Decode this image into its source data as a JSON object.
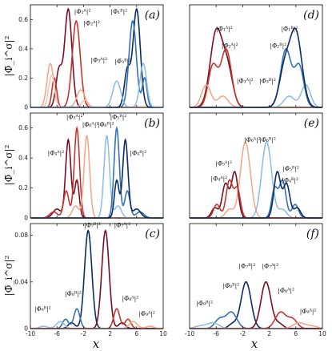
{
  "chart_data": {
    "type": "line",
    "xlabel": "x",
    "ylabel": "|Φ̄_i^σ|²",
    "xlim": [
      -10,
      10
    ],
    "xticks": [
      -10,
      -6,
      -2,
      2,
      6,
      10
    ],
    "xtick_labels": [
      "-10",
      "-6",
      "-2",
      "2",
      "6",
      "10"
    ],
    "panels": [
      {
        "id": "a",
        "label": "(a)",
        "ylim": [
          0,
          0.7
        ],
        "yticks": [
          0,
          0.2,
          0.4,
          0.6
        ],
        "ytick_labels": [
          "0",
          "0.2",
          "0.4",
          "0.6"
        ],
        "annotations": [
          {
            "text": "|Φ̄₁ᴬ|²",
            "x": -3.4,
            "y": 0.64
          },
          {
            "text": "|Φ̄₂ᴬ|²",
            "x": -2.0,
            "y": 0.56
          },
          {
            "text": "|Φ̄₃ᴬ|²",
            "x": -0.9,
            "y": 0.31
          },
          {
            "text": "|Φ̄₁ᴮ|²",
            "x": 2.1,
            "y": 0.64
          },
          {
            "text": "|Φ̄₃ᴮ|²",
            "x": 2.7,
            "y": 0.3
          }
        ],
        "series": [
          {
            "color": "#7a0f22",
            "peaks": [
              [
                -4.3,
                0.67,
                0.55
              ],
              [
                -5.7,
                0.25,
                0.45
              ]
            ]
          },
          {
            "color": "#c4362f",
            "peaks": [
              [
                -3.1,
                0.59,
                0.6
              ],
              [
                -6.4,
                0.2,
                0.35
              ]
            ]
          },
          {
            "color": "#f2a98c",
            "peaks": [
              [
                -7.0,
                0.3,
                0.5
              ],
              [
                -2.4,
                0.12,
                0.6
              ]
            ]
          },
          {
            "color": "#f6c4b2",
            "peaks": [
              [
                -6.8,
                0.22,
                0.45
              ],
              [
                -1.8,
                0.05,
                0.5
              ]
            ]
          },
          {
            "color": "#0d2c63",
            "peaks": [
              [
                6.0,
                0.67,
                0.55
              ],
              [
                4.6,
                0.25,
                0.45
              ]
            ]
          },
          {
            "color": "#3472b6",
            "peaks": [
              [
                5.4,
                0.59,
                0.55
              ],
              [
                7.2,
                0.2,
                0.35
              ]
            ]
          },
          {
            "color": "#8fc0e4",
            "peaks": [
              [
                7.0,
                0.3,
                0.5
              ],
              [
                3.0,
                0.18,
                0.6
              ]
            ]
          }
        ]
      },
      {
        "id": "b",
        "label": "(b)",
        "ylim": [
          0,
          0.7
        ],
        "yticks": [
          0,
          0.2,
          0.4,
          0.6
        ],
        "ytick_labels": [
          "0",
          "0.2",
          "0.4",
          "0.6"
        ],
        "annotations": [
          {
            "text": "|Φ̄₅ᴬ|²",
            "x": -4.6,
            "y": 0.66
          },
          {
            "text": "|Φ̄₆ᴬ|²",
            "x": -2.2,
            "y": 0.61
          },
          {
            "text": "|Φ̄₆ᴮ|²",
            "x": 0.1,
            "y": 0.61
          },
          {
            "text": "|Φ̄₅ᴮ|²",
            "x": 2.0,
            "y": 0.66
          },
          {
            "text": "|Φ̄₄ᴬ|²",
            "x": -7.4,
            "y": 0.42
          },
          {
            "text": "|Φ̄₄ᴮ|²",
            "x": 5.0,
            "y": 0.42
          }
        ],
        "series": [
          {
            "color": "#7a0f22",
            "peaks": [
              [
                -4.3,
                0.52,
                0.4
              ],
              [
                -3.0,
                0.25,
                0.35
              ],
              [
                -6.0,
                0.06,
                0.6
              ]
            ]
          },
          {
            "color": "#c4362f",
            "peaks": [
              [
                -3.0,
                0.6,
                0.4
              ],
              [
                -4.6,
                0.18,
                0.4
              ],
              [
                -6.5,
                0.04,
                0.6
              ]
            ]
          },
          {
            "color": "#f2a98c",
            "peaks": [
              [
                -1.5,
                0.55,
                0.42
              ],
              [
                -3.2,
                0.08,
                0.5
              ]
            ]
          },
          {
            "color": "#8fc0e4",
            "peaks": [
              [
                1.5,
                0.55,
                0.42
              ],
              [
                3.2,
                0.08,
                0.5
              ]
            ]
          },
          {
            "color": "#3472b6",
            "peaks": [
              [
                3.0,
                0.6,
                0.4
              ],
              [
                4.6,
                0.18,
                0.4
              ],
              [
                6.5,
                0.04,
                0.6
              ]
            ]
          },
          {
            "color": "#0d2c63",
            "peaks": [
              [
                4.3,
                0.52,
                0.4
              ],
              [
                3.0,
                0.25,
                0.35
              ],
              [
                6.0,
                0.06,
                0.6
              ]
            ]
          }
        ]
      },
      {
        "id": "c",
        "label": "(c)",
        "ylim": [
          0,
          0.09
        ],
        "yticks": [
          0,
          0.04,
          0.08
        ],
        "ytick_labels": [
          "0",
          "0.04",
          "0.08"
        ],
        "annotations": [
          {
            "text": "|Φ̄₇ᴮ|²",
            "x": -1.9,
            "y": 0.087
          },
          {
            "text": "|Φ̄₇ᴬ|²",
            "x": 2.6,
            "y": 0.087
          },
          {
            "text": "|Φ̄₈ᴮ|²",
            "x": -4.8,
            "y": 0.028
          },
          {
            "text": "|Φ̄₈ᴬ|²",
            "x": 3.8,
            "y": 0.024
          },
          {
            "text": "|Φ̄₉ᴮ|²",
            "x": -9.4,
            "y": 0.015
          },
          {
            "text": "|Φ̄₉ᴬ|²",
            "x": 6.3,
            "y": 0.011
          }
        ],
        "series": [
          {
            "color": "#0d2c63",
            "peaks": [
              [
                -1.3,
                0.084,
                0.55
              ],
              [
                -3.8,
                0.005,
                0.5
              ]
            ]
          },
          {
            "color": "#3472b6",
            "peaks": [
              [
                -3.0,
                0.017,
                0.45
              ],
              [
                -4.7,
                0.008,
                0.45
              ]
            ]
          },
          {
            "color": "#8fc0e4",
            "peaks": [
              [
                -5.5,
                0.006,
                0.6
              ],
              [
                -8.0,
                0.002,
                0.6
              ]
            ]
          },
          {
            "color": "#7a0f22",
            "peaks": [
              [
                1.3,
                0.084,
                0.55
              ],
              [
                3.8,
                0.005,
                0.5
              ]
            ]
          },
          {
            "color": "#c4362f",
            "peaks": [
              [
                3.0,
                0.017,
                0.45
              ],
              [
                4.7,
                0.008,
                0.45
              ]
            ]
          },
          {
            "color": "#f2a98c",
            "peaks": [
              [
                5.5,
                0.006,
                0.6
              ],
              [
                8.0,
                0.002,
                0.6
              ]
            ]
          }
        ]
      },
      {
        "id": "d",
        "label": "(d)",
        "ylim": [
          0,
          0.55
        ],
        "yticks": [],
        "ytick_labels": [],
        "annotations": [
          {
            "text": "|Φ̄₁ᴬ|²",
            "x": -6.0,
            "y": 0.41
          },
          {
            "text": "|Φ̄₂ᴬ|²",
            "x": -5.2,
            "y": 0.32
          },
          {
            "text": "|Φ̄₃ᴬ|²",
            "x": -2.9,
            "y": 0.13
          },
          {
            "text": "|Φ̄₃ᴮ|²",
            "x": 0.5,
            "y": 0.13
          },
          {
            "text": "|Φ̄₂ᴮ|²",
            "x": 2.1,
            "y": 0.32
          },
          {
            "text": "|Φ̄₁ᴮ|²",
            "x": 3.8,
            "y": 0.41
          }
        ],
        "series": [
          {
            "color": "#7a0f22",
            "peaks": [
              [
                -6.0,
                0.4,
                0.9
              ],
              [
                -4.3,
                0.2,
                0.8
              ]
            ]
          },
          {
            "color": "#c4362f",
            "peaks": [
              [
                -4.5,
                0.31,
                0.8
              ],
              [
                -6.5,
                0.22,
                0.7
              ]
            ]
          },
          {
            "color": "#f2a98c",
            "peaks": [
              [
                -7.5,
                0.12,
                0.7
              ],
              [
                -5.0,
                0.06,
                0.8
              ]
            ]
          },
          {
            "color": "#8fc0e4",
            "peaks": [
              [
                7.5,
                0.12,
                0.7
              ],
              [
                5.0,
                0.06,
                0.8
              ]
            ]
          },
          {
            "color": "#3472b6",
            "peaks": [
              [
                4.5,
                0.31,
                0.8
              ],
              [
                6.5,
                0.22,
                0.7
              ]
            ]
          },
          {
            "color": "#0d2c63",
            "peaks": [
              [
                6.0,
                0.4,
                0.9
              ],
              [
                4.3,
                0.2,
                0.8
              ]
            ]
          }
        ]
      },
      {
        "id": "e",
        "label": "(e)",
        "ylim": [
          0,
          0.62
        ],
        "yticks": [],
        "ytick_labels": [],
        "annotations": [
          {
            "text": "|Φ̄₆ᴬ|²",
            "x": -1.8,
            "y": 0.45
          },
          {
            "text": "|Φ̄₆ᴮ|²",
            "x": 0.5,
            "y": 0.45
          },
          {
            "text": "|Φ̄₅ᴬ|²",
            "x": -6.1,
            "y": 0.31
          },
          {
            "text": "|Φ̄₄ᴬ|²",
            "x": -6.8,
            "y": 0.22
          },
          {
            "text": "|Φ̄₅ᴮ|²",
            "x": 4.0,
            "y": 0.28
          },
          {
            "text": "|Φ̄₄ᴮ|²",
            "x": 3.9,
            "y": 0.21
          }
        ],
        "series": [
          {
            "color": "#f2a98c",
            "peaks": [
              [
                -1.6,
                0.45,
                0.75
              ],
              [
                -4.0,
                0.05,
                0.6
              ]
            ]
          },
          {
            "color": "#8fc0e4",
            "peaks": [
              [
                1.6,
                0.45,
                0.75
              ],
              [
                4.0,
                0.05,
                0.6
              ]
            ]
          },
          {
            "color": "#7a0f22",
            "peaks": [
              [
                -3.2,
                0.27,
                0.5
              ],
              [
                -4.6,
                0.2,
                0.5
              ],
              [
                -6.2,
                0.06,
                0.5
              ]
            ]
          },
          {
            "color": "#c4362f",
            "peaks": [
              [
                -4.0,
                0.22,
                0.5
              ],
              [
                -2.8,
                0.17,
                0.45
              ],
              [
                -5.9,
                0.08,
                0.5
              ]
            ]
          },
          {
            "color": "#3472b6",
            "peaks": [
              [
                4.0,
                0.22,
                0.5
              ],
              [
                2.8,
                0.17,
                0.45
              ],
              [
                5.9,
                0.08,
                0.5
              ]
            ]
          },
          {
            "color": "#0d2c63",
            "peaks": [
              [
                3.2,
                0.27,
                0.5
              ],
              [
                4.6,
                0.2,
                0.5
              ],
              [
                6.2,
                0.06,
                0.5
              ]
            ]
          }
        ]
      },
      {
        "id": "f",
        "label": "(f)",
        "ylim": [
          0,
          0.09
        ],
        "yticks": [],
        "ytick_labels": [],
        "annotations": [
          {
            "text": "|Φ̄₇ᴮ|²",
            "x": -2.6,
            "y": 0.052
          },
          {
            "text": "|Φ̄₇ᴬ|²",
            "x": 0.9,
            "y": 0.052
          },
          {
            "text": "|Φ̄₈ᴮ|²",
            "x": -5.0,
            "y": 0.035
          },
          {
            "text": "|Φ̄₈ᴬ|²",
            "x": 3.3,
            "y": 0.031
          },
          {
            "text": "|Φ̄₉ᴮ|²",
            "x": -9.0,
            "y": 0.02
          },
          {
            "text": "|Φ̄₉ᴬ|²",
            "x": 6.6,
            "y": 0.013
          }
        ],
        "series": [
          {
            "color": "#0d2c63",
            "peaks": [
              [
                -1.5,
                0.04,
                0.75
              ],
              [
                -3.5,
                0.004,
                0.6
              ]
            ]
          },
          {
            "color": "#3472b6",
            "peaks": [
              [
                -3.7,
                0.014,
                0.8
              ],
              [
                -5.5,
                0.008,
                0.7
              ]
            ]
          },
          {
            "color": "#8fc0e4",
            "peaks": [
              [
                -6.5,
                0.005,
                0.9
              ],
              [
                -8.5,
                0.002,
                0.8
              ]
            ]
          },
          {
            "color": "#7a0f22",
            "peaks": [
              [
                1.5,
                0.04,
                0.75
              ],
              [
                3.5,
                0.004,
                0.6
              ]
            ]
          },
          {
            "color": "#c4362f",
            "peaks": [
              [
                3.7,
                0.014,
                0.8
              ],
              [
                5.5,
                0.008,
                0.7
              ]
            ]
          },
          {
            "color": "#f2a98c",
            "peaks": [
              [
                6.5,
                0.005,
                0.9
              ],
              [
                8.5,
                0.002,
                0.8
              ]
            ]
          }
        ]
      }
    ]
  }
}
